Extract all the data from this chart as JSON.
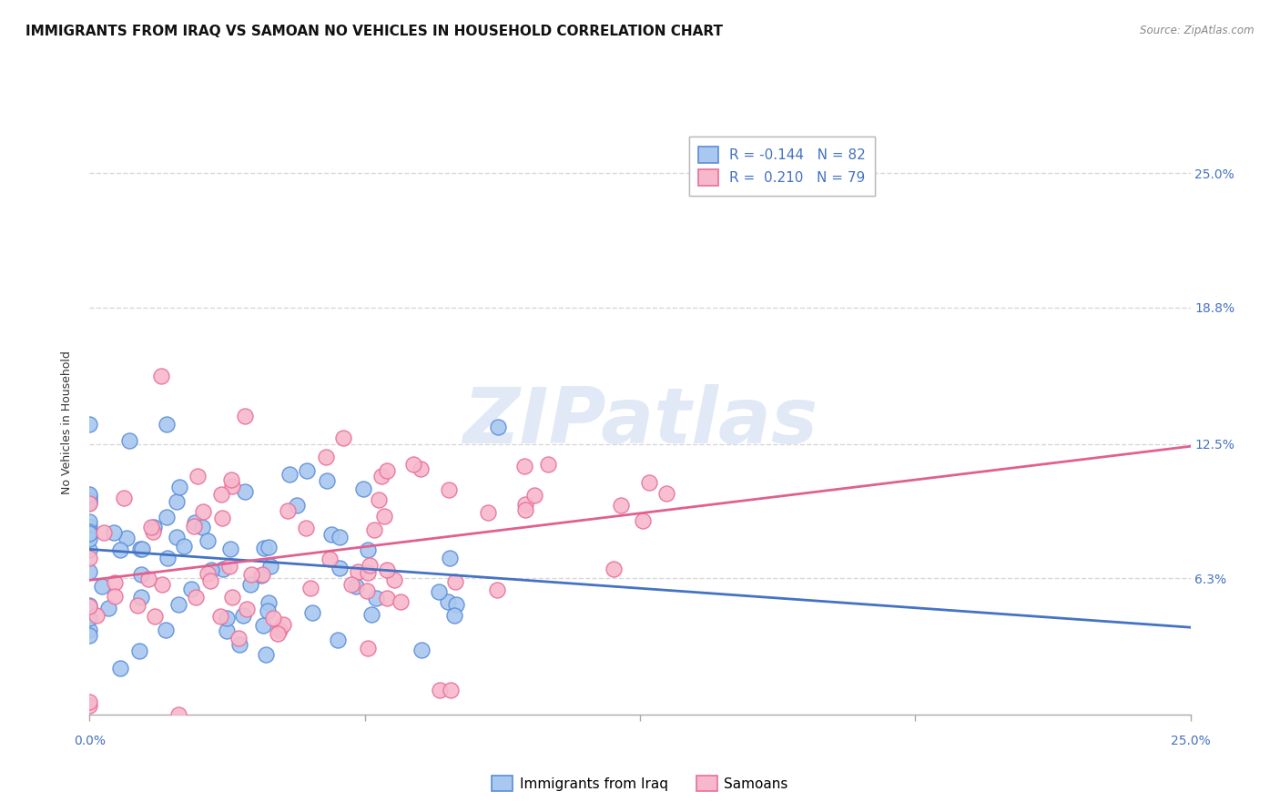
{
  "title": "IMMIGRANTS FROM IRAQ VS SAMOAN NO VEHICLES IN HOUSEHOLD CORRELATION CHART",
  "source": "Source: ZipAtlas.com",
  "ylabel": "No Vehicles in Household",
  "ytick_labels": [
    "6.3%",
    "12.5%",
    "18.8%",
    "25.0%"
  ],
  "ytick_values": [
    6.3,
    12.5,
    18.8,
    25.0
  ],
  "xlim": [
    0.0,
    25.0
  ],
  "ylim": [
    0.0,
    27.0
  ],
  "legend_r1": "R = -0.144",
  "legend_n1": "N = 82",
  "legend_r2": "R =  0.210",
  "legend_n2": "N = 79",
  "color_iraq": "#a8c8f0",
  "color_samoan": "#f8b8cc",
  "color_iraq_edge": "#5b8dd9",
  "color_samoan_edge": "#e87099",
  "color_iraq_line": "#4472c4",
  "color_samoan_line": "#e06090",
  "color_blue_label": "#4472c4",
  "watermark_text": "ZIPatlas",
  "background_color": "#ffffff",
  "grid_color": "#d8d8d8",
  "title_fontsize": 11,
  "axis_label_fontsize": 9,
  "tick_fontsize": 10,
  "iraq_N": 82,
  "samoan_N": 79,
  "iraq_R": -0.144,
  "samoan_R": 0.21,
  "iraq_x_mean": 2.8,
  "iraq_x_std": 3.5,
  "iraq_y_mean": 7.2,
  "iraq_y_std": 2.8,
  "samoan_x_mean": 4.5,
  "samoan_x_std": 4.0,
  "samoan_y_mean": 8.0,
  "samoan_y_std": 3.5,
  "iraq_seed": 42,
  "samoan_seed": 13
}
